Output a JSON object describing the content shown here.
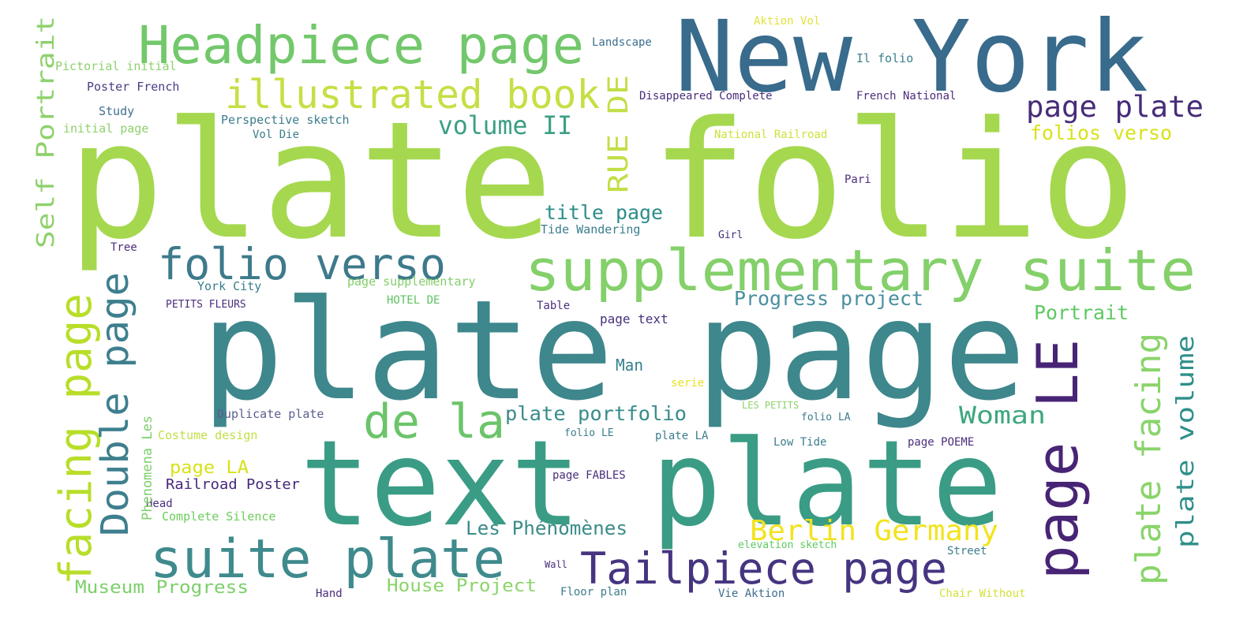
{
  "words": [
    "plate folio",
    "plate page",
    "text plate",
    "New York",
    "Headpiece page",
    "supplementary suite",
    "illustrated book",
    "folio verso",
    "suite plate",
    "Tailpiece page",
    "de la",
    "page LE",
    "plate facing",
    "facing page",
    "Double page",
    "Self Portrait",
    "RUE DE",
    "plate volume",
    "page plate",
    "folios verso",
    "volume II",
    "title page",
    "Progress project",
    "Portrait",
    "Woman",
    "plate portfolio",
    "Berlin Germany",
    "Les Phénomènes",
    "Museum Progress",
    "House Project",
    "page LA",
    "Railroad Poster",
    "Man",
    "page text",
    "Complete Silence",
    "Costume design",
    "Duplicate plate",
    "York City",
    "page supplementary",
    "HOTEL DE",
    "Perspective sketch",
    "Vol Die",
    "initial page",
    "Study",
    "Poster French",
    "Pictorial initial",
    "Tide Wandering",
    "Landscape",
    "Disappeared Complete",
    "French National",
    "National Railroad",
    "Il folio",
    "Aktion Vol",
    "Low Tide",
    "page POEME",
    "Floor plan",
    "Vie Aktion",
    "Chair Without",
    "Street",
    "elevation sketch",
    "page FABLES",
    "plate LA",
    "folio LE",
    "folio LA",
    "LES PETITS",
    "serie",
    "Table",
    "PETITS FLEURS",
    "Tree",
    "Head",
    "Hand",
    "Wall",
    "Pari",
    "Girl",
    "Phenomena Les"
  ]
}
